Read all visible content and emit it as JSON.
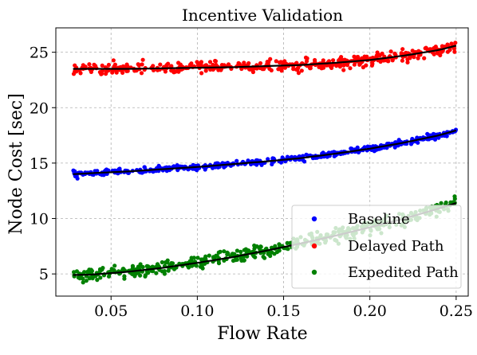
{
  "chart_data": {
    "type": "scatter",
    "title": "Incentive Validation",
    "xlabel": "Flow Rate",
    "ylabel": "Node Cost [sec]",
    "xlim": [
      0.018,
      0.257
    ],
    "ylim": [
      3.0,
      27.2
    ],
    "grid": true,
    "legend_position": "lower-right",
    "x_ticks": [
      0.05,
      0.1,
      0.15,
      0.2,
      0.25
    ],
    "x_tick_labels": [
      "0.05",
      "0.10",
      "0.15",
      "0.20",
      "0.25"
    ],
    "y_ticks": [
      5,
      10,
      15,
      20,
      25
    ],
    "y_tick_labels": [
      "5",
      "10",
      "15",
      "20",
      "25"
    ],
    "series": [
      {
        "name": "Baseline",
        "color": "#0000ff",
        "noise": 0.12,
        "x": [
          0.028,
          0.04,
          0.06,
          0.08,
          0.1,
          0.12,
          0.14,
          0.16,
          0.18,
          0.2,
          0.22,
          0.24,
          0.25
        ],
        "y": [
          14.0,
          14.1,
          14.25,
          14.45,
          14.65,
          14.9,
          15.15,
          15.45,
          15.85,
          16.3,
          16.85,
          17.5,
          17.95
        ]
      },
      {
        "name": "Delayed Path",
        "color": "#ff0000",
        "noise": 0.25,
        "x": [
          0.028,
          0.04,
          0.06,
          0.08,
          0.1,
          0.12,
          0.14,
          0.16,
          0.18,
          0.2,
          0.22,
          0.24,
          0.25
        ],
        "y": [
          23.5,
          23.5,
          23.5,
          23.55,
          23.6,
          23.65,
          23.75,
          23.85,
          24.05,
          24.3,
          24.7,
          25.2,
          25.6
        ]
      },
      {
        "name": "Expedited Path",
        "color": "#008000",
        "noise": 0.3,
        "x": [
          0.028,
          0.04,
          0.06,
          0.08,
          0.1,
          0.12,
          0.14,
          0.16,
          0.18,
          0.2,
          0.22,
          0.24,
          0.25
        ],
        "y": [
          4.9,
          4.95,
          5.2,
          5.55,
          6.0,
          6.5,
          7.1,
          7.75,
          8.45,
          9.2,
          10.0,
          10.9,
          11.4
        ]
      }
    ]
  }
}
